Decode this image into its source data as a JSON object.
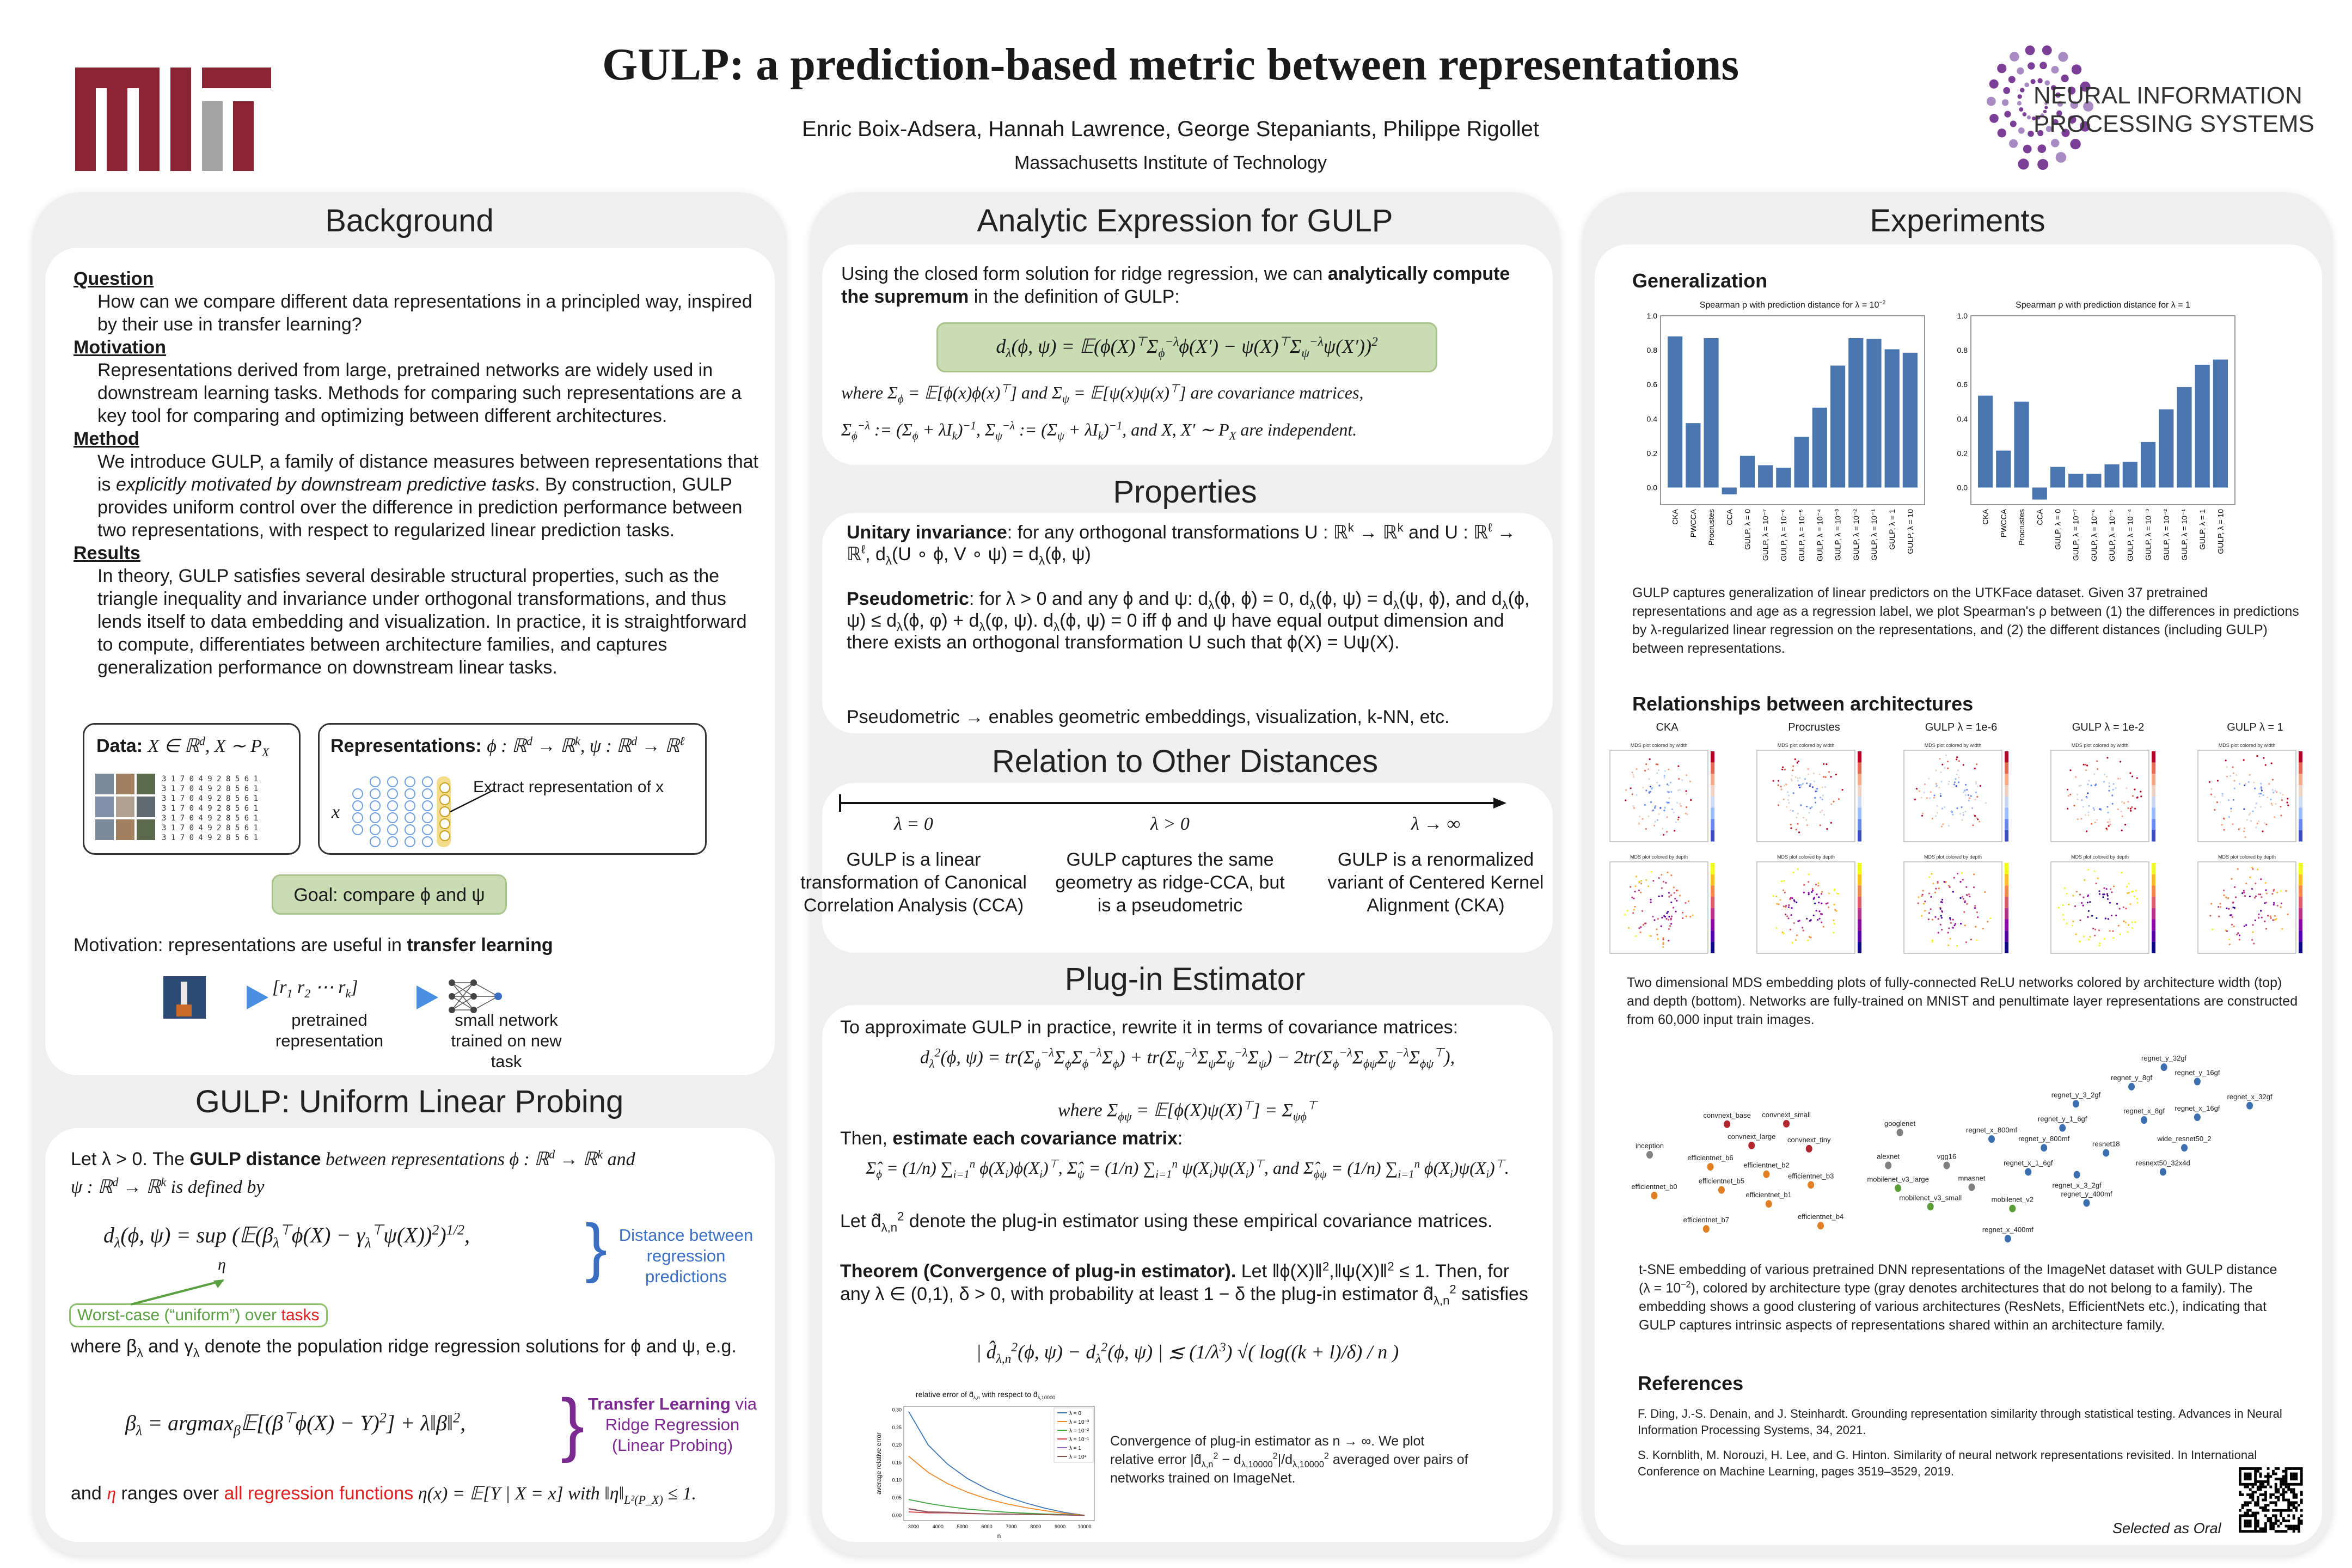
{
  "header": {
    "title": "GULP: a prediction-based metric between representations",
    "authors": "Enric Boix-Adsera, Hannah Lawrence, George Stepaniants, Philippe Rigollet",
    "affiliation": "Massachusetts Institute of Technology",
    "left_logo": "MIT",
    "right_logo_line1": "NEURAL INFORMATION",
    "right_logo_line2": "PROCESSING SYSTEMS"
  },
  "background": {
    "title": "Background",
    "question_label": "Question",
    "question": "How can we compare different data representations in a principled way, inspired by their use in transfer learning?",
    "motivation_label": "Motivation",
    "motivation": "Representations derived from large, pretrained networks are widely used in downstream learning tasks. Methods for comparing such representations are a key tool for comparing and optimizing between different architectures.",
    "method_label": "Method",
    "method_a": "We introduce GULP, a family of distance measures between representations that is ",
    "method_b": "explicitly motivated by  downstream predictive tasks",
    "method_c": ". By construction, GULP provides uniform control over the difference in prediction performance between two representations, with respect to regularized linear prediction tasks.",
    "results_label": "Results",
    "results": "In theory, GULP satisfies several desirable structural properties, such as the triangle inequality and invariance under orthogonal transformations, and thus lends itself to data embedding and visualization. In practice, it is straightforward to compute, differentiates between architecture families, and captures generalization performance on downstream linear tasks.",
    "data_label": "Data:",
    "data_math": "X ∈ ℝ^{d}, X ∼ P_{X}",
    "rep_label": "Representations:",
    "rep_math": "ϕ : ℝ^{d} → ℝ^{k}, ψ : ℝ^{d} → ℝ^{ℓ}",
    "extract": "Extract representation of x",
    "x_var": "x",
    "goal": "Goal: compare ϕ and ψ",
    "transfer_a": "Motivation: representations are useful in ",
    "transfer_b": "transfer learning",
    "vector": "[r_{1}   r_{2}   ⋯   r_{k}]",
    "pretrained": "pretrained representation",
    "small_net": "small network trained on new task"
  },
  "gulp": {
    "title": "GULP: Uniform Linear Probing",
    "intro_a": "Let λ > 0. The ",
    "intro_b": "GULP distance",
    "intro_c": " between representations ϕ : ℝ^{d} → ℝ^{k} and",
    "intro_d": "ψ : ℝ^{d} → ℝ^{k} is defined by",
    "formula": "d_{λ}(ϕ, ψ) = sup (𝔼(β_{λ}^{⊤}ϕ(X) − γ_{λ}^{⊤}ψ(X))^{2})^{1/2},",
    "eta": "η",
    "distance_note": "Distance between regression predictions",
    "worst_a": "Worst-case (“uniform”) over ",
    "worst_b": "tasks",
    "where": "where β_{λ} and γ_{λ} denote the population ridge regression solutions for ϕ and ψ, e.g.",
    "beta_formula": "β_{λ} = argmax_{β}𝔼[(β^{⊤}ϕ(X) − Y)^{2}] + λ‖β‖^{2},",
    "transfer_a": "Transfer Learning",
    "transfer_b": " via Ridge Regression (Linear Probing)",
    "final_a": "and ",
    "final_b": "η",
    "final_c": " ranges over ",
    "final_d": "all regression functions",
    "final_e": " η(x) = 𝔼[Y | X = x] with ‖η‖_{L²(P_X)} ≤ 1."
  },
  "analytic": {
    "title": "Analytic Expression for GULP",
    "intro_a": "Using the closed form solution for ridge regression, we can ",
    "intro_b": "analytically compute the supremum",
    "intro_c": " in the definition of GULP:",
    "formula": "d_{λ}(ϕ, ψ) = 𝔼(ϕ(X)^{⊤}Σ_{ϕ}^{−λ}ϕ(X′) − ψ(X)^{⊤}Σ_{ψ}^{−λ}ψ(X′))^{2}",
    "where1": "where Σ_{ϕ} = 𝔼[ϕ(x)ϕ(x)^{⊤}] and Σ_{ψ} = 𝔼[ψ(x)ψ(x)^{⊤}] are covariance matrices,",
    "where2": "Σ_{ϕ}^{−λ} := (Σ_{ϕ} + λI_{k})^{−1}, Σ_{ψ}^{−λ} := (Σ_{ψ} + λI_{k})^{−1}, and X, X′ ∼ P_{X} are independent."
  },
  "properties": {
    "title": "Properties",
    "unitary_label": "Unitary invariance",
    "unitary": ": for any orthogonal transformations U : ℝ^{k} → ℝ^{k} and U : ℝ^{ℓ} → ℝ^{ℓ}, d_{λ}(U ∘ ϕ, V ∘ ψ) = d_{λ}(ϕ, ψ)",
    "pseudo_label": "Pseudometric",
    "pseudo": ": for λ > 0 and any ϕ and ψ: d_{λ}(ϕ, ϕ) = 0, d_{λ}(ϕ, ψ) = d_{λ}(ψ, ϕ), and d_{λ}(ϕ, ψ) ≤ d_{λ}(ϕ, φ) + d_{λ}(φ, ψ). d_{λ}(ϕ, ψ) = 0 iff ϕ and ψ have equal output dimension and there exists an orthogonal transformation U such that ϕ(X) = Uψ(X).",
    "note": "Pseudometric → enables geometric embeddings, visualization, k-NN, etc."
  },
  "relation": {
    "title": "Relation to Other Distances",
    "items": [
      {
        "lambda": "λ = 0",
        "text": "GULP is a linear transformation of Canonical Correlation Analysis (CCA)"
      },
      {
        "lambda": "λ > 0",
        "text": "GULP captures the same geometry as ridge-CCA, but is a pseudometric"
      },
      {
        "lambda": "λ → ∞",
        "text": "GULP is a renormalized variant of Centered Kernel Alignment (CKA)"
      }
    ]
  },
  "plugin": {
    "title": "Plug-in Estimator",
    "intro": "To approximate GULP in practice, rewrite it in terms of covariance matrices:",
    "formula": "d_{λ}^{2}(ϕ, ψ) = tr(Σ_{ϕ}^{−λ}Σ_{ϕ}Σ_{ϕ}^{−λ}Σ_{ϕ}) + tr(Σ_{ψ}^{−λ}Σ_{ψ}Σ_{ψ}^{−λ}Σ_{ψ}) − 2tr(Σ_{ϕ}^{−λ}Σ_{ϕψ}Σ_{ψ}^{−λ}Σ_{ϕψ}^{⊤}),",
    "where": "where Σ_{ϕψ} = 𝔼[ϕ(X)ψ(X)^{⊤}] = Σ_{ψϕ}^{⊤}",
    "then_a": "Then, ",
    "then_b": "estimate each covariance matrix",
    "then_c": ":",
    "estimators": "Σ̂_{ϕ} = (1/n) ∑_{i=1}^{n} ϕ(X_{i})ϕ(X_{i})^{⊤},    Σ̂_{ψ} = (1/n) ∑_{i=1}^{n} ψ(X_{i})ψ(X_{i})^{⊤},    and    Σ̂_{ϕψ} = (1/n) ∑_{i=1}^{n} ϕ(X_{i})ψ(X_{i})^{⊤}.",
    "let": "Let d̂_{λ,n}^{2} denote the plug-in estimator using these empirical covariance matrices.",
    "theorem_label": "Theorem (Convergence of plug-in estimator).",
    "theorem": " Let ‖ϕ(X)‖^{2},‖ψ(X)‖^{2} ≤ 1. Then, for any λ ∈ (0,1), δ > 0, with probability at least 1 − δ the plug-in estimator d̂_{λ,n}^{2}  satisfies",
    "bound": "| d̂_{λ,n}^{2}(ϕ, ψ) − d_{λ}^{2}(ϕ, ψ) | ≲ (1/λ^{3}) √( log((k + l)/δ) / n )",
    "caption": "Convergence of plug-in estimator as n → ∞. We plot relative error |d̂_{λ,n}^{2} − d_{λ,10000}^{2}|/d_{λ,10000}^{2} averaged over pairs of networks trained on ImageNet."
  },
  "experiments": {
    "title": "Experiments",
    "generalization": "Generalization",
    "gen_caption": "GULP captures generalization of linear predictors on the UTKFace dataset. Given 37 pretrained representations and age as a regression label, we plot Spearman's ρ between (1) the differences in predictions by λ-regularized linear regression on the representations, and (2) the different distances (including GULP) between representations.",
    "relationships": "Relationships between architectures",
    "mds_titles": [
      "CKA",
      "Procrustes",
      "GULP λ = 1e-6",
      "GULP λ = 1e-2",
      "GULP λ = 1"
    ],
    "mds_sub_width": "MDS plot colored by width",
    "mds_sub_depth": "MDS plot colored by depth",
    "mds_caption": "Two dimensional MDS embedding plots of fully-connected ReLU networks colored by architecture width (top) and depth (bottom). Networks are fully-trained on MNIST and penultimate layer representations are constructed from 60,000 input train images.",
    "tsne_caption": "t-SNE embedding of various pretrained DNN representations of the ImageNet dataset with GULP distance (λ = 10^{−2}), colored by architecture type (gray denotes architectures that do not belong to a family). The embedding shows a good clustering of various architectures (ResNets, EfficientNets etc.), indicating that GULP captures intrinsic aspects of representations shared within an architecture family.",
    "references_title": "References",
    "references": [
      "F. Ding, J.-S. Denain, and J. Steinhardt. Grounding representation similarity through statistical testing. Advances in Neural Information Processing Systems, 34, 2021.",
      "S. Kornblith, M. Norouzi, H. Lee, and G. Hinton. Similarity of neural network representations revisited. In International Conference on Machine Learning, pages 3519–3529, 2019."
    ],
    "oral": "Selected as Oral"
  },
  "colors": {
    "bar": "#4a76b0",
    "maroon": "#8a2432",
    "gray": "#a3a3a3",
    "green_box": "#c9dcb3",
    "blue_note": "#3a6fc4",
    "purple_note": "#7b2a90",
    "red": "#e02020"
  },
  "chart_data": [
    {
      "type": "bar",
      "title": "Spearman ρ with prediction distance for λ = 10^{−2}",
      "ylim": [
        -0.1,
        1.0
      ],
      "yticks": [
        0.0,
        0.2,
        0.4,
        0.6,
        0.8,
        1.0
      ],
      "categories": [
        "CKA",
        "PWCCA",
        "Procrustes",
        "CCA",
        "GULP, λ = 0",
        "GULP, λ = 10⁻⁷",
        "GULP, λ = 10⁻⁶",
        "GULP, λ = 10⁻⁵",
        "GULP, λ = 10⁻⁴",
        "GULP, λ = 10⁻³",
        "GULP, λ = 10⁻²",
        "GULP, λ = 10⁻¹",
        "GULP, λ = 1",
        "GULP, λ = 10"
      ],
      "values": [
        0.88,
        0.375,
        0.87,
        -0.04,
        0.185,
        0.13,
        0.115,
        0.295,
        0.465,
        0.71,
        0.87,
        0.865,
        0.805,
        0.785
      ]
    },
    {
      "type": "bar",
      "title": "Spearman ρ with prediction distance for λ = 1",
      "ylim": [
        -0.1,
        1.0
      ],
      "yticks": [
        0.0,
        0.2,
        0.4,
        0.6,
        0.8,
        1.0
      ],
      "categories": [
        "CKA",
        "PWCCA",
        "Procrustes",
        "CCA",
        "GULP, λ = 0",
        "GULP, λ = 10⁻⁷",
        "GULP, λ = 10⁻⁶",
        "GULP, λ = 10⁻⁵",
        "GULP, λ = 10⁻⁴",
        "GULP, λ = 10⁻³",
        "GULP, λ = 10⁻²",
        "GULP, λ = 10⁻¹",
        "GULP, λ = 1",
        "GULP, λ = 10"
      ],
      "values": [
        0.535,
        0.215,
        0.5,
        -0.07,
        0.12,
        0.08,
        0.08,
        0.135,
        0.15,
        0.265,
        0.455,
        0.585,
        0.715,
        0.745
      ]
    },
    {
      "type": "line",
      "title": "relative error of d̂_{λ,n} with respect to d̂_{λ,10000}",
      "xlabel": "n",
      "ylabel": "average relative error",
      "xlim": [
        2600,
        10400
      ],
      "ylim": [
        -0.015,
        0.31
      ],
      "xticks": [
        3000,
        4000,
        5000,
        6000,
        7000,
        8000,
        9000,
        10000
      ],
      "yticks": [
        0.0,
        0.05,
        0.1,
        0.15,
        0.2,
        0.25,
        0.3
      ],
      "legend": "top-right",
      "x": [
        2800,
        3600,
        4400,
        5200,
        6000,
        6800,
        7600,
        8400,
        9200,
        10000
      ],
      "series": [
        {
          "name": "λ = 0",
          "color": "#3b75b4",
          "values": [
            0.295,
            0.2,
            0.145,
            0.105,
            0.075,
            0.053,
            0.035,
            0.02,
            0.008,
            0
          ]
        },
        {
          "name": "λ = 10⁻³",
          "color": "#f08a2a",
          "values": [
            0.168,
            0.122,
            0.09,
            0.066,
            0.047,
            0.033,
            0.022,
            0.013,
            0.005,
            0
          ]
        },
        {
          "name": "λ = 10⁻²",
          "color": "#3ca33c",
          "values": [
            0.045,
            0.034,
            0.025,
            0.018,
            0.013,
            0.009,
            0.006,
            0.004,
            0.002,
            0
          ]
        },
        {
          "name": "λ = 10⁻¹",
          "color": "#d23b3b",
          "values": [
            0.01,
            0.007,
            0.007,
            0.005,
            0.004,
            0.004,
            0.003,
            0.002,
            0.001,
            0
          ]
        },
        {
          "name": "λ = 1",
          "color": "#9467bd",
          "values": [
            0.018,
            0.009,
            0.008,
            0.006,
            0.004,
            0.003,
            0.003,
            0.002,
            0.001,
            0
          ]
        },
        {
          "name": "λ = 10¹",
          "color": "#8c564b",
          "values": [
            0.019,
            0.01,
            0.009,
            0.006,
            0.004,
            0.004,
            0.003,
            0.002,
            0.001,
            0
          ]
        }
      ]
    },
    {
      "type": "scatter",
      "title": "t-SNE embedding (GULP, λ = 10⁻²)",
      "families": {
        "resnet": "#3b6fb0",
        "convnext": "#b2272d",
        "efficientnet": "#e07f24",
        "mobilenet": "#5a9e38",
        "other": "#808080"
      },
      "points": [
        {
          "label": "regnet_y_32gf",
          "x": 119,
          "y": 1.2,
          "family": "resnet"
        },
        {
          "label": "regnet_y_16gf",
          "x": 126.2,
          "y": -1.9,
          "family": "resnet"
        },
        {
          "label": "regnet_y_8gf",
          "x": 112,
          "y": -3.0,
          "family": "resnet"
        },
        {
          "label": "regnet_y_3_2gf",
          "x": 100,
          "y": -6.7,
          "family": "resnet"
        },
        {
          "label": "regnet_x_32gf",
          "x": 137.5,
          "y": -7.1,
          "family": "resnet"
        },
        {
          "label": "regnet_x_8gf",
          "x": 114.7,
          "y": -10.2,
          "family": "resnet"
        },
        {
          "label": "regnet_x_16gf",
          "x": 126.2,
          "y": -9.6,
          "family": "resnet"
        },
        {
          "label": "regnet_y_1_6gf",
          "x": 97.1,
          "y": -11.9,
          "family": "resnet"
        },
        {
          "label": "regnet_x_800mf",
          "x": 81.8,
          "y": -14.3,
          "family": "resnet"
        },
        {
          "label": "regnet_y_800mf",
          "x": 93.1,
          "y": -16.2,
          "family": "resnet"
        },
        {
          "label": "resnet18",
          "x": 106.5,
          "y": -17.3,
          "family": "resnet"
        },
        {
          "label": "wide_resnet50_2",
          "x": 123.4,
          "y": -16.2,
          "family": "resnet"
        },
        {
          "label": "regnet_x_1_6gf",
          "x": 89.7,
          "y": -21.4,
          "family": "resnet"
        },
        {
          "label": "regnet_x_3_2gf",
          "x": 100.2,
          "y": -22.0,
          "family": "resnet"
        },
        {
          "label": "resnext50_32x4d",
          "x": 118.8,
          "y": -21.4,
          "family": "resnet"
        },
        {
          "label": "regnet_y_400mf",
          "x": 102.3,
          "y": -28.1,
          "family": "resnet"
        },
        {
          "label": "regnet_x_400mf",
          "x": 85.3,
          "y": -35.8,
          "family": "resnet"
        },
        {
          "label": "convnext_base",
          "x": 24.7,
          "y": -11.1,
          "family": "convnext"
        },
        {
          "label": "convnext_small",
          "x": 37.5,
          "y": -11.0,
          "family": "convnext"
        },
        {
          "label": "convnext_large",
          "x": 30,
          "y": -15.7,
          "family": "convnext"
        },
        {
          "label": "convnext_tiny",
          "x": 42.4,
          "y": -16.4,
          "family": "convnext"
        },
        {
          "label": "googlenet",
          "x": 62,
          "y": -12.9,
          "family": "other"
        },
        {
          "label": "inception",
          "x": 8,
          "y": -17.7,
          "family": "other"
        },
        {
          "label": "alexnet",
          "x": 59.5,
          "y": -20.0,
          "family": "other"
        },
        {
          "label": "vgg16",
          "x": 72.1,
          "y": -20.0,
          "family": "other"
        },
        {
          "label": "mnasnet",
          "x": 77.5,
          "y": -24.7,
          "family": "other"
        },
        {
          "label": "mobilenet_v3_large",
          "x": 61.6,
          "y": -24.9,
          "family": "mobilenet"
        },
        {
          "label": "mobilenet_v3_small",
          "x": 68.6,
          "y": -28.9,
          "family": "mobilenet"
        },
        {
          "label": "mobilenet_v2",
          "x": 86.3,
          "y": -29.3,
          "family": "mobilenet"
        },
        {
          "label": "efficientnet_b6",
          "x": 21.1,
          "y": -20.3,
          "family": "efficientnet"
        },
        {
          "label": "efficientnet_b2",
          "x": 33.2,
          "y": -21.9,
          "family": "efficientnet"
        },
        {
          "label": "efficientnet_b3",
          "x": 42.8,
          "y": -24.2,
          "family": "efficientnet"
        },
        {
          "label": "efficientnet_b5",
          "x": 23.5,
          "y": -25.3,
          "family": "efficientnet"
        },
        {
          "label": "efficientnet_b0",
          "x": 9,
          "y": -26.5,
          "family": "efficientnet"
        },
        {
          "label": "efficientnet_b1",
          "x": 33.7,
          "y": -28.3,
          "family": "efficientnet"
        },
        {
          "label": "efficientnet_b7",
          "x": 20.2,
          "y": -33.7,
          "family": "efficientnet"
        },
        {
          "label": "efficientnet_b4",
          "x": 44.9,
          "y": -33.0,
          "family": "efficientnet"
        }
      ]
    }
  ]
}
